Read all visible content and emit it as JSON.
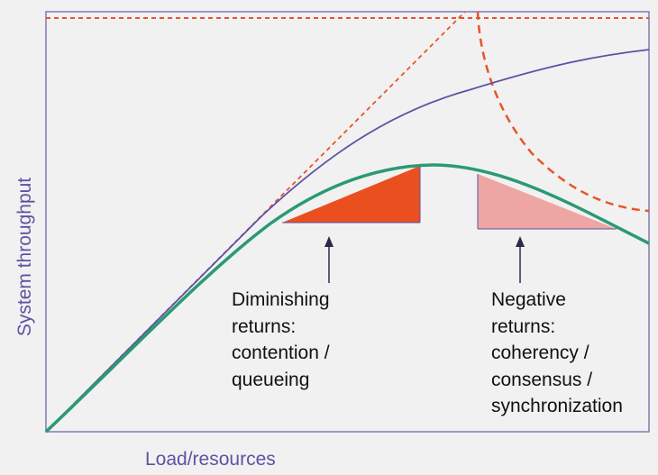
{
  "diagram": {
    "axis": {
      "y_label": "System throughput",
      "x_label": "Load/resources"
    },
    "annotations": {
      "diminishing_returns": [
        "Diminishing",
        "returns:",
        "contention /",
        "queueing"
      ],
      "negative_returns": [
        "Negative",
        "returns:",
        "coherency /",
        "consensus /",
        "synchronization"
      ]
    },
    "colors": {
      "axis_frame": "#7f7ab5",
      "ideal_linear": "#e8542a",
      "amdahl_curve": "#5c53a3",
      "usl_curve": "#2a9a74",
      "contention_triangle": "#ea4f1f",
      "coherency_triangle": "#eea6a4",
      "arrow": "#2a2a4a"
    }
  }
}
